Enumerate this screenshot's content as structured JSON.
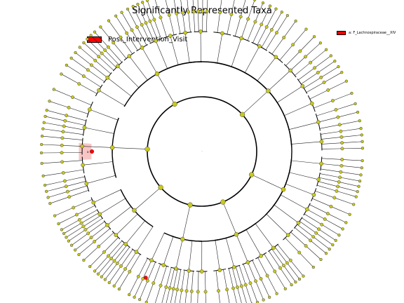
{
  "title": "Significantly Represented Taxa",
  "legend": {
    "label": "Post_Intervention_Visit",
    "color": "#ff0000"
  },
  "side_legend": {
    "text": "a: F_Lachnospiraceae__XIV",
    "color": "#ff0000"
  },
  "cladogram": {
    "node_color": "#c8c81e",
    "highlight_color": "#ff0000",
    "highlight_region_color": "#f4a6a6",
    "highlight_label": "a",
    "center_mark": "."
  }
}
